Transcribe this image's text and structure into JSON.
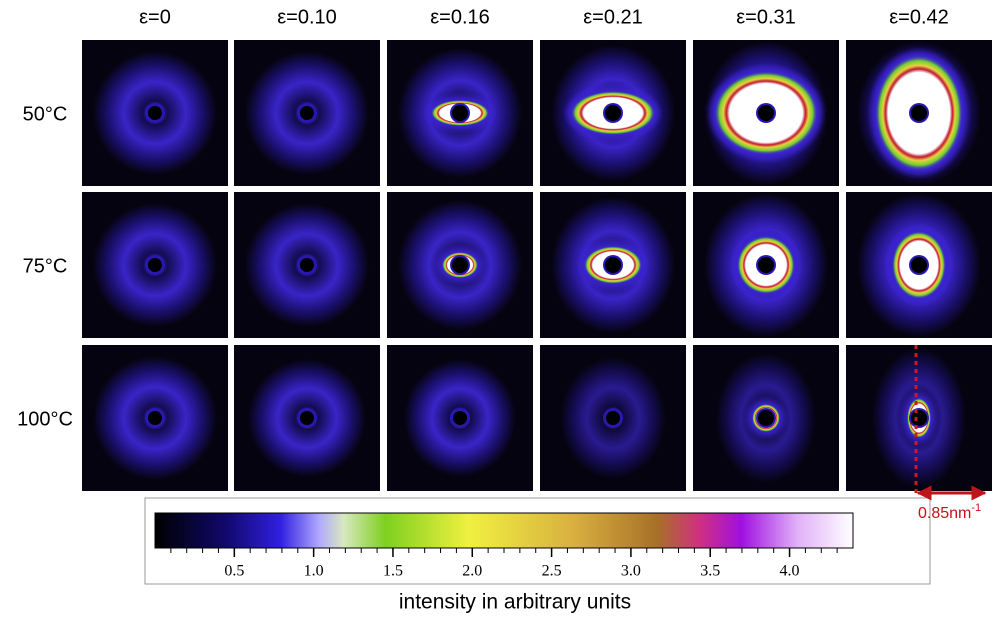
{
  "column_labels": [
    "ε=0",
    "ε=0.10",
    "ε=0.16",
    "ε=0.21",
    "ε=0.31",
    "ε=0.42"
  ],
  "row_labels": [
    "50°C",
    "75°C",
    "100°C"
  ],
  "colorbar": {
    "label": "intensity in arbitrary units",
    "lim": [
      0,
      4.4
    ],
    "ticks": [
      {
        "value": 0.5,
        "label": "0.5"
      },
      {
        "value": 1,
        "label": "1.0"
      },
      {
        "value": 1.5,
        "label": "1.5"
      },
      {
        "value": 2,
        "label": "2.0"
      },
      {
        "value": 2.5,
        "label": "2.5"
      },
      {
        "value": 3,
        "label": "3.0"
      },
      {
        "value": 3.5,
        "label": "3.5"
      },
      {
        "value": 4,
        "label": "4.0"
      }
    ]
  },
  "scale_bar": {
    "text": "0.85nm",
    "superscript": "-1"
  }
}
